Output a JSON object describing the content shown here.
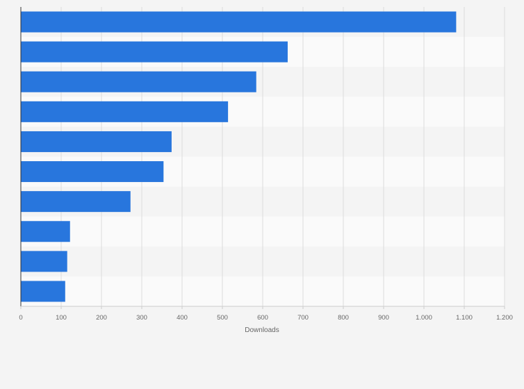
{
  "chart_data": {
    "type": "bar",
    "orientation": "horizontal",
    "title": "",
    "categories": [
      "",
      "",
      "",
      "",
      "",
      "",
      "",
      "",
      "",
      ""
    ],
    "values": [
      1080,
      662,
      584,
      514,
      374,
      354,
      272,
      122,
      115,
      110
    ],
    "xlabel": "Downloads",
    "ylabel": "",
    "xlim": [
      0,
      1200
    ],
    "x_ticks": [
      0,
      100,
      200,
      300,
      400,
      500,
      600,
      700,
      800,
      900,
      1000,
      1100,
      1200
    ],
    "x_tick_labels": [
      "0",
      "100",
      "200",
      "300",
      "400",
      "500",
      "600",
      "700",
      "800",
      "900",
      "1.000",
      "1.100",
      "1.200"
    ],
    "grid": true,
    "bar_color": "#2876dd",
    "legend": "none"
  }
}
